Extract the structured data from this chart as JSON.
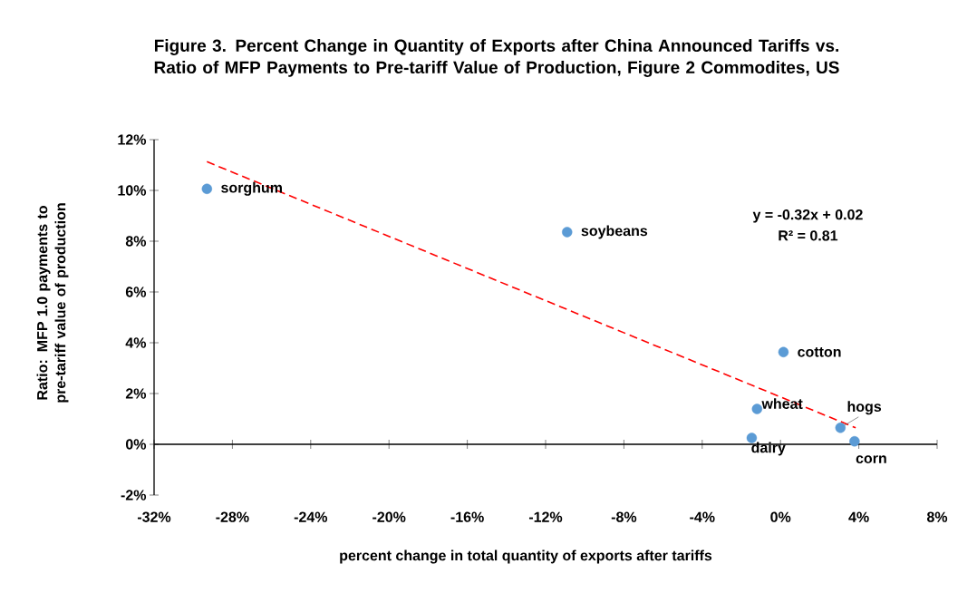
{
  "chart_data": {
    "type": "scatter",
    "title": "Figure 3. Percent Change in Quantity of Exports after China Announced Tariffs vs. Ratio of MFP Payments to Pre-tariff Value of Production, Figure 2 Commodites, US",
    "xlabel": "percent change in total quantity of exports after tariffs",
    "ylabel": "Ratio: MFP 1.0 payments to pre-tariff value of production",
    "xlim": [
      -32,
      8
    ],
    "ylim": [
      -2,
      12
    ],
    "xticks": [
      {
        "value": -32,
        "label": "-32%"
      },
      {
        "value": -28,
        "label": "-28%"
      },
      {
        "value": -24,
        "label": "-24%"
      },
      {
        "value": -20,
        "label": "-20%"
      },
      {
        "value": -16,
        "label": "-16%"
      },
      {
        "value": -12,
        "label": "-12%"
      },
      {
        "value": -8,
        "label": "-8%"
      },
      {
        "value": -4,
        "label": "-4%"
      },
      {
        "value": 0,
        "label": "0%"
      },
      {
        "value": 4,
        "label": "4%"
      },
      {
        "value": 8,
        "label": "8%"
      }
    ],
    "yticks": [
      {
        "value": -2,
        "label": "-2%"
      },
      {
        "value": 0,
        "label": "0%"
      },
      {
        "value": 2,
        "label": "2%"
      },
      {
        "value": 4,
        "label": "4%"
      },
      {
        "value": 6,
        "label": "6%"
      },
      {
        "value": 8,
        "label": "8%"
      },
      {
        "value": 10,
        "label": "10%"
      },
      {
        "value": 12,
        "label": "12%"
      }
    ],
    "series": [
      {
        "color": "#5b9bd5",
        "marker": "circle",
        "x": [
          -29.3,
          -10.9,
          0.15,
          -1.2,
          -1.47,
          3.06,
          3.78
        ],
        "values": [
          10.06,
          8.36,
          3.63,
          1.39,
          0.25,
          0.65,
          0.12
        ]
      },
      {
        "type": "line",
        "color": "#ff0000",
        "line_style": "dashed",
        "marker": "none",
        "x": [
          -29.3,
          3.84
        ],
        "values": [
          11.13,
          0.65
        ]
      }
    ],
    "annotations": [
      {
        "text": "sorghum",
        "x": -29.3,
        "y": 10.06
      },
      {
        "text": "soybeans",
        "x": -10.9,
        "y": 8.36
      },
      {
        "text": "cotton",
        "x": 0.15,
        "y": 3.63
      },
      {
        "text": "wheat",
        "x": -1.2,
        "y": 1.39
      },
      {
        "text": "dairy",
        "x": -1.47,
        "y": 0.25
      },
      {
        "text": "hogs",
        "x": 3.06,
        "y": 0.65
      },
      {
        "text": "corn",
        "x": 3.78,
        "y": 0.12
      },
      "y = -0.32x + 0.02",
      "R² = 0.81"
    ]
  }
}
